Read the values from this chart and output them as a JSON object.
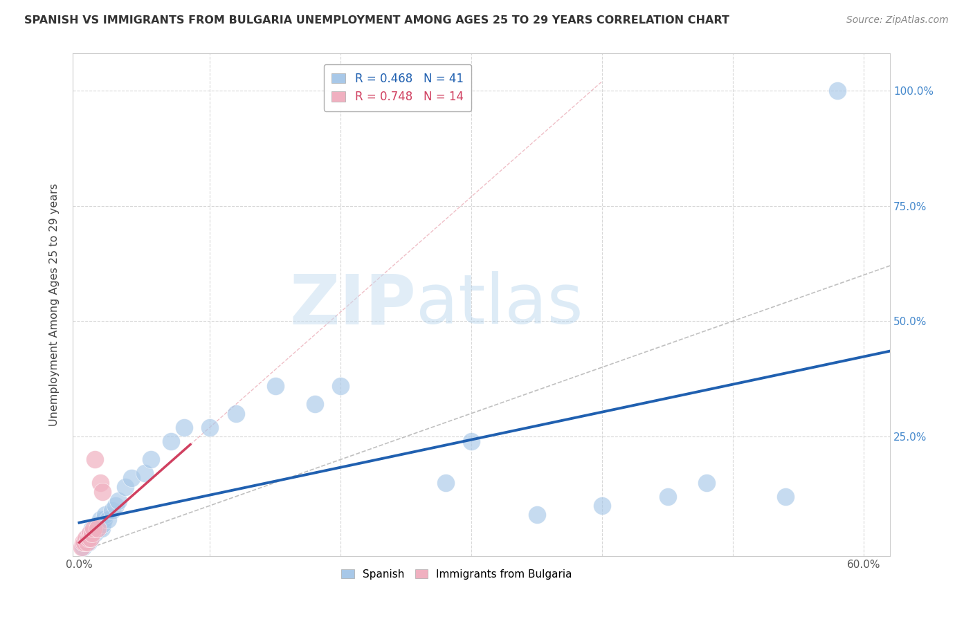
{
  "title": "SPANISH VS IMMIGRANTS FROM BULGARIA UNEMPLOYMENT AMONG AGES 25 TO 29 YEARS CORRELATION CHART",
  "source": "Source: ZipAtlas.com",
  "ylabel": "Unemployment Among Ages 25 to 29 years",
  "xlabel": "",
  "xlim": [
    -0.005,
    0.62
  ],
  "ylim": [
    -0.01,
    1.08
  ],
  "xtick_positions": [
    0.0,
    0.1,
    0.2,
    0.3,
    0.4,
    0.5,
    0.6
  ],
  "ytick_positions": [
    0.0,
    0.25,
    0.5,
    0.75,
    1.0
  ],
  "xticklabels": [
    "0.0%",
    "",
    "",
    "",
    "",
    "",
    "60.0%"
  ],
  "yticklabels_right": [
    "",
    "25.0%",
    "50.0%",
    "75.0%",
    "100.0%"
  ],
  "watermark_zip": "ZIP",
  "watermark_atlas": "atlas",
  "legend_blue_label": "R = 0.468   N = 41",
  "legend_pink_label": "R = 0.748   N = 14",
  "blue_scatter_color": "#a8c8e8",
  "pink_scatter_color": "#f0b0c0",
  "blue_line_color": "#2060b0",
  "pink_line_color": "#d04060",
  "pink_dash_color": "#e08090",
  "ref_line_color": "#c0c0c0",
  "grid_color": "#d8d8d8",
  "ytick_color": "#4488cc",
  "title_color": "#333333",
  "source_color": "#888888",
  "spanish_x": [
    0.003,
    0.005,
    0.006,
    0.007,
    0.008,
    0.009,
    0.01,
    0.01,
    0.012,
    0.013,
    0.014,
    0.015,
    0.015,
    0.016,
    0.017,
    0.018,
    0.019,
    0.02,
    0.022,
    0.025,
    0.028,
    0.03,
    0.035,
    0.04,
    0.05,
    0.055,
    0.07,
    0.08,
    0.1,
    0.12,
    0.15,
    0.18,
    0.2,
    0.28,
    0.3,
    0.35,
    0.4,
    0.45,
    0.48,
    0.54,
    0.58
  ],
  "spanish_y": [
    0.01,
    0.02,
    0.03,
    0.02,
    0.04,
    0.03,
    0.04,
    0.05,
    0.04,
    0.05,
    0.06,
    0.05,
    0.06,
    0.07,
    0.05,
    0.06,
    0.07,
    0.08,
    0.07,
    0.09,
    0.1,
    0.11,
    0.14,
    0.16,
    0.17,
    0.2,
    0.24,
    0.27,
    0.27,
    0.3,
    0.36,
    0.32,
    0.36,
    0.15,
    0.24,
    0.08,
    0.1,
    0.12,
    0.15,
    0.12,
    1.0
  ],
  "bulgaria_x": [
    0.002,
    0.003,
    0.004,
    0.005,
    0.006,
    0.007,
    0.008,
    0.009,
    0.01,
    0.011,
    0.012,
    0.014,
    0.016,
    0.018
  ],
  "bulgaria_y": [
    0.01,
    0.02,
    0.02,
    0.03,
    0.02,
    0.03,
    0.04,
    0.03,
    0.04,
    0.05,
    0.2,
    0.05,
    0.15,
    0.13
  ]
}
